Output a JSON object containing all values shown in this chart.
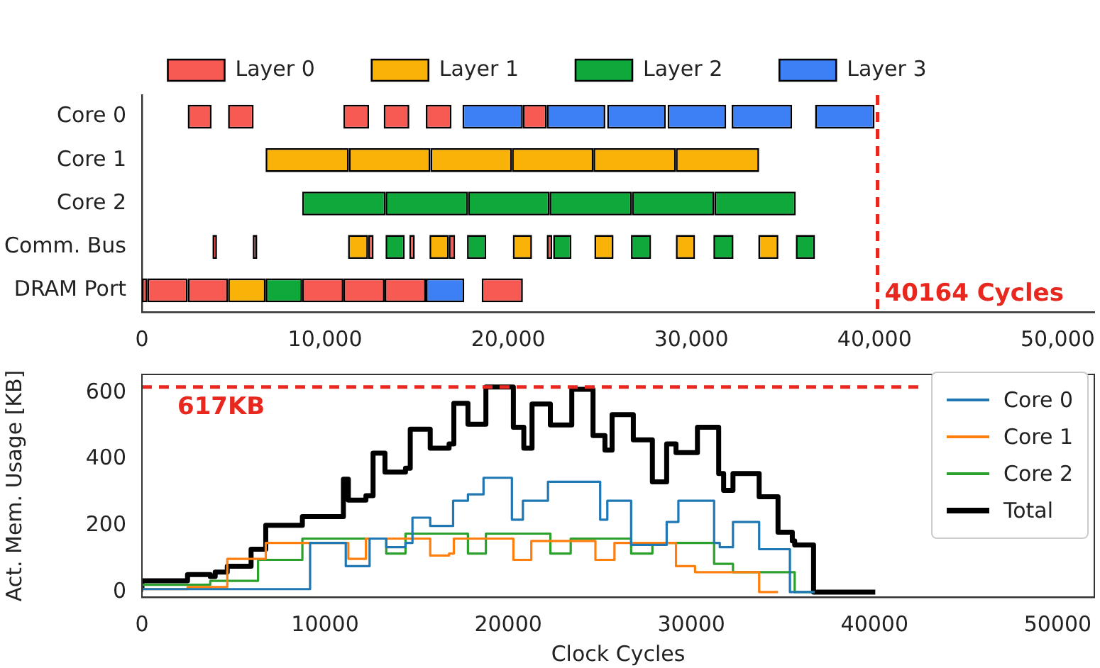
{
  "chart_data": [
    {
      "type": "bar",
      "orientation": "horizontal",
      "categories": [
        "Core 0",
        "Core 1",
        "Core 2",
        "Comm. Bus",
        "DRAM Port"
      ],
      "legend": "top",
      "xlim": [
        0,
        52000
      ],
      "xticks": [
        0,
        {
          "value": 10000,
          "label": "10,000"
        },
        {
          "value": 20000,
          "label": "20,000"
        },
        {
          "value": 30000,
          "label": "30,000"
        },
        {
          "value": 40000,
          "label": "40,000"
        },
        {
          "value": 50000,
          "label": "50,000"
        }
      ],
      "ref_lines": [
        {
          "axis": "x",
          "value": 40164,
          "label": "40164 Cycles",
          "color": "#e8281e",
          "line_style": "dashed"
        }
      ],
      "series": [
        {
          "name": "Layer 0",
          "color": "#f65a53",
          "base": [
            2500,
            null,
            null,
            3850,
            0
          ],
          "values": [
            1300,
            null,
            null,
            250,
            300
          ]
        },
        {
          "color": "#f65a53",
          "base": [
            4700,
            null,
            null,
            6050,
            300
          ],
          "values": [
            1400,
            null,
            null,
            250,
            2200
          ]
        },
        {
          "color": "#f65a53",
          "base": [
            11000,
            null,
            null,
            12350,
            2500
          ],
          "values": [
            1400,
            null,
            null,
            300,
            2200
          ]
        },
        {
          "color": "#f65a53",
          "base": [
            13200,
            null,
            null,
            14600,
            8750
          ],
          "values": [
            1400,
            null,
            null,
            300,
            2250
          ]
        },
        {
          "color": "#f65a53",
          "base": [
            15500,
            null,
            null,
            16750,
            11000
          ],
          "values": [
            1400,
            null,
            null,
            350,
            2250
          ]
        },
        {
          "color": "#f65a53",
          "base": [
            20800,
            null,
            null,
            22100,
            13250
          ],
          "values": [
            1300,
            null,
            null,
            300,
            2250
          ]
        },
        {
          "color": "#f65a53",
          "base": [
            null,
            null,
            null,
            null,
            18550
          ],
          "values": [
            null,
            null,
            null,
            null,
            2250
          ]
        },
        {
          "name": "Layer 1",
          "color": "#f9b208",
          "base": [
            null,
            6750,
            null,
            11250,
            4700
          ],
          "values": [
            null,
            4550,
            null,
            1100,
            2050
          ]
        },
        {
          "color": "#f9b208",
          "base": [
            null,
            11300,
            null,
            15700,
            null
          ],
          "values": [
            null,
            4450,
            null,
            1050,
            null
          ]
        },
        {
          "color": "#f9b208",
          "base": [
            null,
            15750,
            null,
            20250,
            null
          ],
          "values": [
            null,
            4450,
            null,
            1050,
            null
          ]
        },
        {
          "color": "#f9b208",
          "base": [
            null,
            20200,
            null,
            24700,
            null
          ],
          "values": [
            null,
            4450,
            null,
            1050,
            null
          ]
        },
        {
          "color": "#f9b208",
          "base": [
            null,
            24650,
            null,
            29150,
            null
          ],
          "values": [
            null,
            4500,
            null,
            1050,
            null
          ]
        },
        {
          "color": "#f9b208",
          "base": [
            null,
            29150,
            null,
            33650,
            null
          ],
          "values": [
            null,
            4550,
            null,
            1100,
            null
          ]
        },
        {
          "name": "Layer 2",
          "color": "#0fa83a",
          "base": [
            null,
            null,
            8750,
            13300,
            6750
          ],
          "values": [
            null,
            null,
            4550,
            1050,
            2000
          ]
        },
        {
          "color": "#0fa83a",
          "base": [
            null,
            null,
            13300,
            17750,
            null
          ],
          "values": [
            null,
            null,
            4500,
            1050,
            null
          ]
        },
        {
          "color": "#0fa83a",
          "base": [
            null,
            null,
            17800,
            22450,
            null
          ],
          "values": [
            null,
            null,
            4450,
            1000,
            null
          ]
        },
        {
          "color": "#0fa83a",
          "base": [
            null,
            null,
            22250,
            26700,
            null
          ],
          "values": [
            null,
            null,
            4500,
            1100,
            null
          ]
        },
        {
          "color": "#0fa83a",
          "base": [
            null,
            null,
            26750,
            31200,
            null
          ],
          "values": [
            null,
            null,
            4500,
            1100,
            null
          ]
        },
        {
          "color": "#0fa83a",
          "base": [
            null,
            null,
            31250,
            35700,
            null
          ],
          "values": [
            null,
            null,
            4450,
            1050,
            null
          ]
        },
        {
          "name": "Layer 3",
          "color": "#3d7ff5",
          "base": [
            17500,
            null,
            null,
            null,
            15500
          ],
          "values": [
            3300,
            null,
            null,
            null,
            2100
          ]
        },
        {
          "color": "#3d7ff5",
          "base": [
            22100,
            null,
            null,
            null,
            null
          ],
          "values": [
            3200,
            null,
            null,
            null,
            null
          ]
        },
        {
          "color": "#3d7ff5",
          "base": [
            25400,
            null,
            null,
            null,
            null
          ],
          "values": [
            3200,
            null,
            null,
            null,
            null
          ]
        },
        {
          "color": "#3d7ff5",
          "base": [
            28700,
            null,
            null,
            null,
            null
          ],
          "values": [
            3200,
            null,
            null,
            null,
            null
          ]
        },
        {
          "color": "#3d7ff5",
          "base": [
            32200,
            null,
            null,
            null,
            null
          ],
          "values": [
            3300,
            null,
            null,
            null,
            null
          ]
        },
        {
          "color": "#3d7ff5",
          "base": [
            36750,
            null,
            null,
            null,
            null
          ],
          "values": [
            3250,
            null,
            null,
            null,
            null
          ]
        }
      ]
    },
    {
      "type": "step",
      "xlabel": "Clock Cycles",
      "ylabel": "Act. Mem. Usage [KB]",
      "legend": "top right",
      "xlim": [
        0,
        52000
      ],
      "xticks": [
        0,
        10000,
        20000,
        30000,
        40000,
        50000
      ],
      "ylim": [
        -15,
        655
      ],
      "yticks": [
        0,
        200,
        400,
        600
      ],
      "ref_lines": [
        {
          "axis": "y",
          "value": 617,
          "label": "617KB",
          "color": "#e8281e",
          "line_style": "dashed"
        }
      ],
      "series": [
        {
          "name": "Core 0",
          "color": "#1f77b4",
          "x": [
            0,
            9180,
            11130,
            12430,
            13340,
            14390,
            14770,
            15740,
            16990,
            17800,
            18650,
            20200,
            20800,
            22170,
            25020,
            25410,
            26710,
            28650,
            29290,
            31240,
            31550,
            32270,
            33700,
            35380,
            36700
          ],
          "values": [
            0,
            9,
            148,
            78,
            161,
            135,
            148,
            224,
            199,
            275,
            294,
            344,
            218,
            275,
            332,
            218,
            275,
            142,
            211,
            275,
            148,
            135,
            211,
            129,
            0
          ]
        },
        {
          "name": "Core 1",
          "color": "#ff7f0e",
          "x": [
            0,
            2490,
            4660,
            6760,
            11270,
            12230,
            15740,
            16770,
            17030,
            20280,
            21260,
            24760,
            25800,
            29160,
            30200,
            33700,
            34730
          ],
          "values": [
            0,
            9,
            15,
            100,
            148,
            100,
            161,
            110,
            116,
            161,
            97,
            154,
            97,
            148,
            78,
            60,
            0
          ]
        },
        {
          "name": "Core 2",
          "color": "#2ca02c",
          "x": [
            0,
            3730,
            6340,
            8760,
            13340,
            14390,
            17800,
            18780,
            22300,
            23410,
            26710,
            27870,
            31240,
            32270,
            35640,
            36730
          ],
          "values": [
            0,
            22,
            34,
            97,
            161,
            116,
            176,
            116,
            176,
            116,
            161,
            116,
            148,
            85,
            60,
            0
          ]
        },
        {
          "name": "Total",
          "color": "#000000",
          "x": [
            0,
            2490,
            3730,
            4000,
            4660,
            5960,
            6760,
            8760,
            11000,
            11270,
            12230,
            12620,
            13270,
            14390,
            14650,
            15740,
            16770,
            17030,
            17800,
            18780,
            20280,
            20850,
            21300,
            22300,
            23470,
            24630,
            25280,
            25670,
            26830,
            27870,
            28650,
            29160,
            30330,
            31490,
            31760,
            32270,
            33700,
            34730,
            35510,
            35640,
            36670,
            40040
          ],
          "values": [
            9,
            34,
            53,
            47,
            60,
            78,
            129,
            201,
            227,
            340,
            277,
            290,
            418,
            361,
            373,
            490,
            433,
            446,
            568,
            505,
            617,
            496,
            433,
            566,
            503,
            610,
            471,
            427,
            534,
            458,
            332,
            446,
            420,
            496,
            357,
            306,
            357,
            287,
            180,
            154,
            142,
            0
          ]
        }
      ]
    }
  ]
}
